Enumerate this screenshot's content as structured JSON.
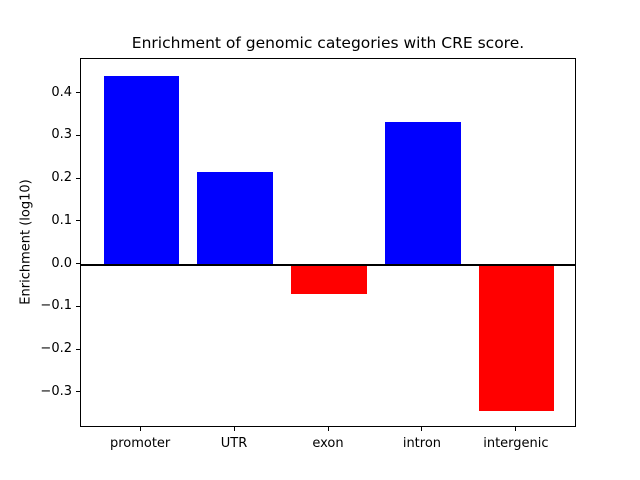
{
  "figure": {
    "background": "#ffffff"
  },
  "chart_data": {
    "type": "bar",
    "title": "Enrichment of genomic categories with CRE score.",
    "xlabel": "",
    "ylabel": "Enrichment (log10)",
    "categories": [
      "promoter",
      "UTR",
      "exon",
      "intron",
      "intergenic"
    ],
    "values": [
      0.442,
      0.217,
      -0.069,
      0.334,
      -0.343
    ],
    "bar_colors": [
      "#0000ff",
      "#0000ff",
      "#ff0000",
      "#0000ff",
      "#ff0000"
    ],
    "positive_color": "#0000ff",
    "negative_color": "#ff0000",
    "axis_color": "#000000",
    "text_color": "#000000",
    "ylim": [
      -0.382,
      0.481
    ],
    "xlim": [
      -0.64,
      4.64
    ],
    "bar_width_fraction": 0.8,
    "yticks": [
      0.4,
      0.3,
      0.2,
      0.1,
      0.0,
      -0.1,
      -0.2,
      -0.3
    ],
    "ytick_labels": [
      "0.4",
      "0.3",
      "0.2",
      "0.1",
      "0.0",
      "−0.1",
      "−0.2",
      "−0.3"
    ],
    "grid": false,
    "legend": null,
    "zero_line": true,
    "legend_position": "none"
  }
}
